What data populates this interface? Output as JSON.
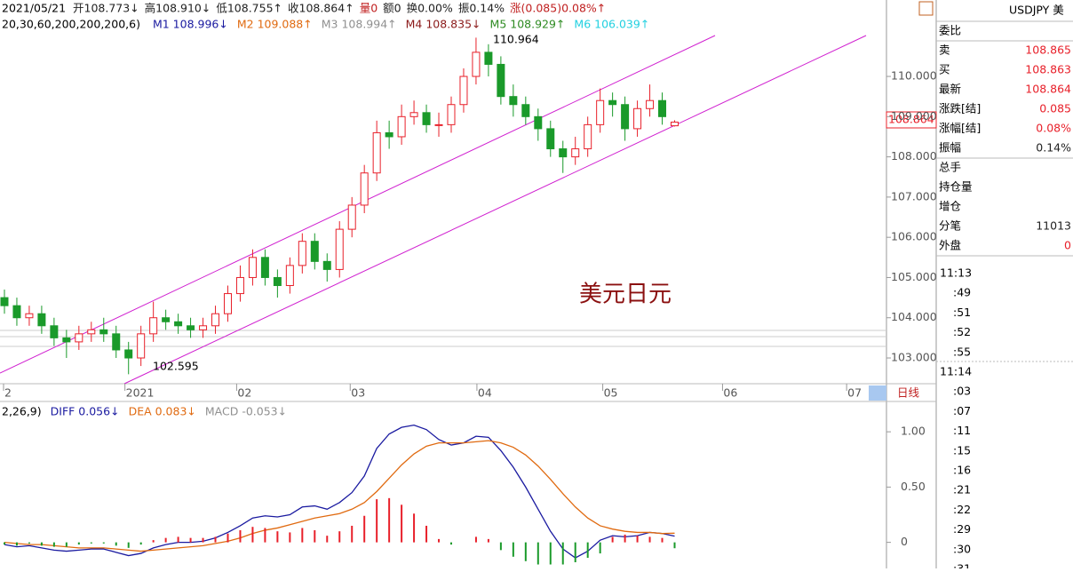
{
  "header": {
    "date": "2021/05/21",
    "fields": [
      "开108.773↓",
      "高108.910↓",
      "低108.755↑",
      "收108.864↑",
      "量0",
      "额0",
      "换0.00%",
      "振0.14%",
      "涨(0.085)0.08%↑"
    ]
  },
  "ma_legend": {
    "params": "20,30,60,200,200,200,6)",
    "items": [
      {
        "text": "M1 108.996↓",
        "color": "#1a1aa0"
      },
      {
        "text": "M2 109.088↑",
        "color": "#e06a10"
      },
      {
        "text": "M3 108.994↑",
        "color": "#909090"
      },
      {
        "text": "M4 108.835↓",
        "color": "#8b1a1a"
      },
      {
        "text": "M5 108.929↑",
        "color": "#2e8b22"
      },
      {
        "text": "M6 106.039↑",
        "color": "#22d0e0"
      }
    ]
  },
  "chart_data": [
    {
      "type": "candlestick",
      "annotations": {
        "high": "110.964",
        "low": "102.595"
      },
      "title": "美元日元",
      "last_price": "108.864",
      "xlim": [
        -0.357,
        71.07
      ],
      "ylim": [
        102.36,
        111.9
      ],
      "xticks": [
        {
          "value": -0.07,
          "label": "2"
        },
        {
          "value": 9.71,
          "label": "2021"
        },
        {
          "value": 18.71,
          "label": "02"
        },
        {
          "value": 27.86,
          "label": "03"
        },
        {
          "value": 38.07,
          "label": "04"
        },
        {
          "value": 48.21,
          "label": "05"
        },
        {
          "value": 57.86,
          "label": "06"
        },
        {
          "value": 67.86,
          "label": "07"
        }
      ],
      "yticks": [
        {
          "value": 103,
          "label": "103.000"
        },
        {
          "value": 104,
          "label": "104.000"
        },
        {
          "value": 105,
          "label": "105.000"
        },
        {
          "value": 106,
          "label": "106.000"
        },
        {
          "value": 107,
          "label": "107.000"
        },
        {
          "value": 108,
          "label": "108.000"
        },
        {
          "value": 109,
          "label": "109.000"
        },
        {
          "value": 110,
          "label": "110.000"
        }
      ],
      "period": "日线",
      "up_color": "#e8202a",
      "down_color": "#1a9a2a",
      "open": [
        104.5,
        104.3,
        104.0,
        104.1,
        103.8,
        103.5,
        103.4,
        103.6,
        103.7,
        103.6,
        103.2,
        103.0,
        103.6,
        104.0,
        103.9,
        103.8,
        103.7,
        103.8,
        104.1,
        104.6,
        105.0,
        105.5,
        105.0,
        104.8,
        105.3,
        105.9,
        105.4,
        105.2,
        106.2,
        106.8,
        107.6,
        108.6,
        108.5,
        109.0,
        109.1,
        108.8,
        108.8,
        109.3,
        110.0,
        110.6,
        110.3,
        109.5,
        109.3,
        109.0,
        108.7,
        108.2,
        108.0,
        108.2,
        108.8,
        109.4,
        109.3,
        108.7,
        109.2,
        109.4,
        108.773
      ],
      "close": [
        104.3,
        104.0,
        104.1,
        103.8,
        103.5,
        103.4,
        103.6,
        103.7,
        103.6,
        103.2,
        103.0,
        103.6,
        104.0,
        103.9,
        103.8,
        103.7,
        103.8,
        104.1,
        104.6,
        105.0,
        105.5,
        105.0,
        104.8,
        105.3,
        105.9,
        105.4,
        105.2,
        106.2,
        106.8,
        107.6,
        108.6,
        108.5,
        109.0,
        109.1,
        108.8,
        108.8,
        109.3,
        110.0,
        110.6,
        110.3,
        109.5,
        109.3,
        109.0,
        108.7,
        108.2,
        108.0,
        108.2,
        108.8,
        109.4,
        109.3,
        108.7,
        109.2,
        109.4,
        109.0,
        108.864
      ],
      "high": [
        104.7,
        104.5,
        104.3,
        104.3,
        104.0,
        103.7,
        103.8,
        103.9,
        104.0,
        103.8,
        103.4,
        103.8,
        104.4,
        104.2,
        104.1,
        104.0,
        104.0,
        104.3,
        104.8,
        105.3,
        105.7,
        105.7,
        105.2,
        105.5,
        106.1,
        106.1,
        105.6,
        106.4,
        107.0,
        107.8,
        108.9,
        108.9,
        109.3,
        109.4,
        109.3,
        109.1,
        109.5,
        110.2,
        110.964,
        110.8,
        110.5,
        109.8,
        109.5,
        109.2,
        108.9,
        108.4,
        108.5,
        109.0,
        109.7,
        109.6,
        109.5,
        109.4,
        109.8,
        109.6,
        108.91
      ],
      "low": [
        104.1,
        103.8,
        103.8,
        103.6,
        103.3,
        103.0,
        103.2,
        103.4,
        103.4,
        103.0,
        102.595,
        102.8,
        103.4,
        103.7,
        103.6,
        103.5,
        103.5,
        103.6,
        103.9,
        104.4,
        104.8,
        104.8,
        104.5,
        104.6,
        105.1,
        105.2,
        104.9,
        105.0,
        106.0,
        106.6,
        107.4,
        108.2,
        108.3,
        108.8,
        108.6,
        108.5,
        108.6,
        109.1,
        109.8,
        110.0,
        109.3,
        109.0,
        108.8,
        108.4,
        108.0,
        107.6,
        107.8,
        108.0,
        108.6,
        109.0,
        108.4,
        108.5,
        109.0,
        108.8,
        108.755
      ]
    },
    {
      "type": "line",
      "params": "2,26,9)",
      "xlim": [
        -0.357,
        71.07
      ],
      "ylim": [
        -0.236,
        1.21
      ],
      "yticks": [
        {
          "value": 0,
          "label": "0"
        },
        {
          "value": 0.5,
          "label": "0.50"
        },
        {
          "value": 1,
          "label": "1.00"
        }
      ],
      "series": [
        {
          "name": "DIFF 0.056↓",
          "color": "#1a1aa0",
          "values": [
            -0.02,
            -0.04,
            -0.03,
            -0.05,
            -0.07,
            -0.08,
            -0.07,
            -0.06,
            -0.06,
            -0.09,
            -0.12,
            -0.1,
            -0.05,
            -0.02,
            0.0,
            0.0,
            0.01,
            0.04,
            0.09,
            0.15,
            0.22,
            0.24,
            0.23,
            0.25,
            0.32,
            0.33,
            0.3,
            0.36,
            0.45,
            0.6,
            0.85,
            0.98,
            1.04,
            1.06,
            1.02,
            0.93,
            0.88,
            0.9,
            0.96,
            0.95,
            0.83,
            0.68,
            0.5,
            0.3,
            0.1,
            -0.06,
            -0.14,
            -0.08,
            0.02,
            0.06,
            0.05,
            0.06,
            0.09,
            0.08,
            0.056
          ]
        },
        {
          "name": "DEA 0.083↓",
          "color": "#e06a10",
          "values": [
            0.0,
            -0.01,
            -0.02,
            -0.02,
            -0.03,
            -0.04,
            -0.05,
            -0.05,
            -0.05,
            -0.06,
            -0.07,
            -0.08,
            -0.07,
            -0.06,
            -0.05,
            -0.04,
            -0.03,
            -0.01,
            0.01,
            0.04,
            0.08,
            0.11,
            0.13,
            0.16,
            0.19,
            0.22,
            0.24,
            0.26,
            0.3,
            0.36,
            0.46,
            0.58,
            0.7,
            0.8,
            0.87,
            0.9,
            0.9,
            0.9,
            0.91,
            0.92,
            0.9,
            0.86,
            0.79,
            0.69,
            0.57,
            0.44,
            0.32,
            0.22,
            0.15,
            0.12,
            0.1,
            0.09,
            0.09,
            0.08,
            0.083
          ]
        },
        {
          "name": "MACD -0.053↓",
          "color": "#909090",
          "type": "bar",
          "values": [
            -0.02,
            -0.03,
            -0.01,
            -0.03,
            -0.04,
            -0.04,
            -0.02,
            -0.01,
            -0.01,
            -0.03,
            -0.05,
            -0.02,
            0.02,
            0.04,
            0.05,
            0.04,
            0.04,
            0.05,
            0.08,
            0.11,
            0.14,
            0.13,
            0.1,
            0.09,
            0.13,
            0.11,
            0.06,
            0.1,
            0.15,
            0.24,
            0.39,
            0.4,
            0.34,
            0.26,
            0.15,
            0.03,
            -0.02,
            0.0,
            0.05,
            0.03,
            -0.07,
            -0.13,
            -0.17,
            -0.2,
            -0.2,
            -0.2,
            -0.18,
            -0.14,
            -0.1,
            0.05,
            0.07,
            0.06,
            0.05,
            0.04,
            -0.053
          ]
        }
      ]
    }
  ],
  "quote_panel": {
    "symbol": "USDJPY 美",
    "rows": [
      {
        "label": "委比"
      },
      {
        "label": "卖",
        "value": "108.865"
      },
      {
        "label": "买",
        "value": "108.863"
      },
      {
        "label": "最新",
        "value": "108.864"
      },
      {
        "label": "涨跌[结]",
        "value": "0.085"
      },
      {
        "label": "涨幅[结]",
        "value": "0.08%"
      },
      {
        "label": "振幅",
        "value": "0.14%"
      },
      {
        "label": "总手"
      },
      {
        "label": "持仓量"
      },
      {
        "label": "增仓"
      },
      {
        "label": "分笔",
        "value": "11013"
      },
      {
        "label": "外盘",
        "value": "0"
      }
    ],
    "times": [
      "11:13",
      ":49",
      ":51",
      ":52",
      ":55",
      "11:14",
      ":03",
      ":07",
      ":11",
      ":15",
      ":16",
      ":21",
      ":22",
      ":29",
      ":30",
      ":31"
    ]
  }
}
